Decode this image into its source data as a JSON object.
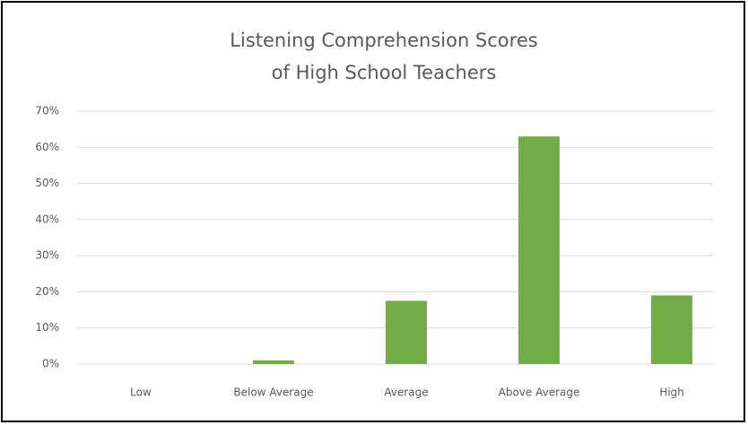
{
  "chart_data": {
    "type": "bar",
    "title": [
      "Listening Comprehension Scores",
      "of High School Teachers"
    ],
    "categories": [
      "Low",
      "Below Average",
      "Average",
      "Above Average",
      "High"
    ],
    "values": [
      0,
      1,
      17.5,
      63,
      19
    ],
    "color": "#70ad47",
    "ylim": [
      0,
      70
    ],
    "yticks": [
      {
        "value": 0,
        "label": "0%"
      },
      {
        "value": 10,
        "label": "10%"
      },
      {
        "value": 20,
        "label": "20%"
      },
      {
        "value": 30,
        "label": "30%"
      },
      {
        "value": 40,
        "label": "40%"
      },
      {
        "value": 50,
        "label": "50%"
      },
      {
        "value": 60,
        "label": "60%"
      },
      {
        "value": 70,
        "label": "70%"
      }
    ],
    "grid": true
  }
}
